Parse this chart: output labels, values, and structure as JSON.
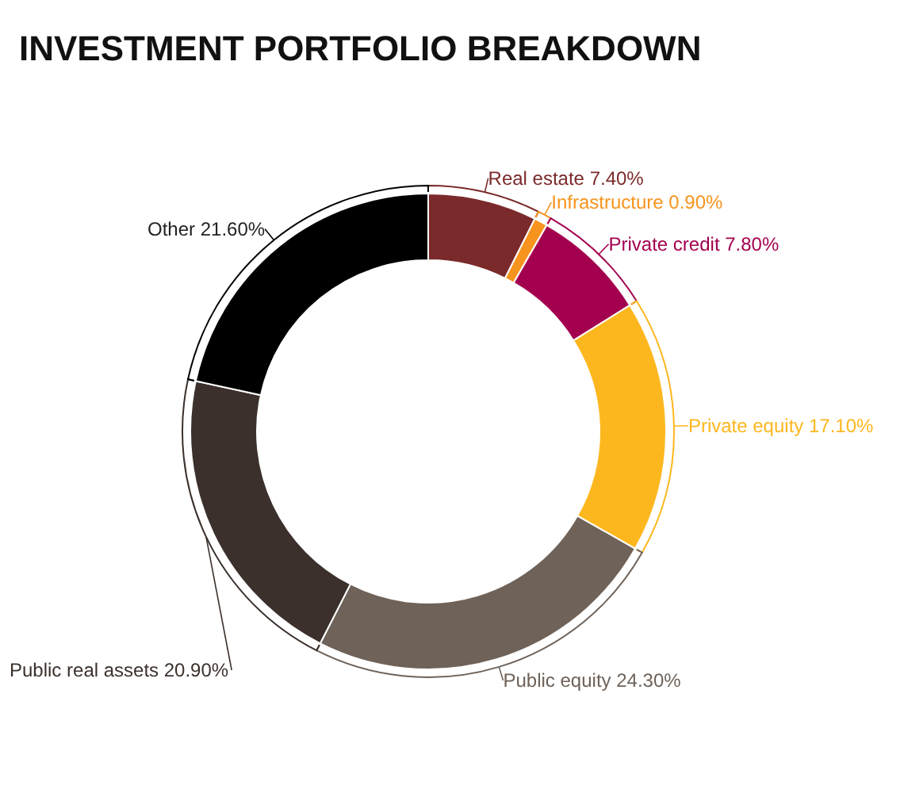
{
  "chart_data": {
    "type": "donut",
    "title": "INVESTMENT PORTFOLIO BREAKDOWN",
    "categories": [
      "Real estate",
      "Infrastructure",
      "Private credit",
      "Private equity",
      "Public equity",
      "Public real assets",
      "Other"
    ],
    "values": [
      7.4,
      0.9,
      7.8,
      17.1,
      24.3,
      20.9,
      21.6
    ],
    "value_labels": [
      "7.40%",
      "0.90%",
      "7.80%",
      "17.10%",
      "24.30%",
      "20.90%",
      "21.60%"
    ],
    "colors": [
      "#7b2a2b",
      "#f7941d",
      "#a3004f",
      "#fdb71e",
      "#6e6259",
      "#3b302b",
      "#000000"
    ],
    "legend": false
  }
}
